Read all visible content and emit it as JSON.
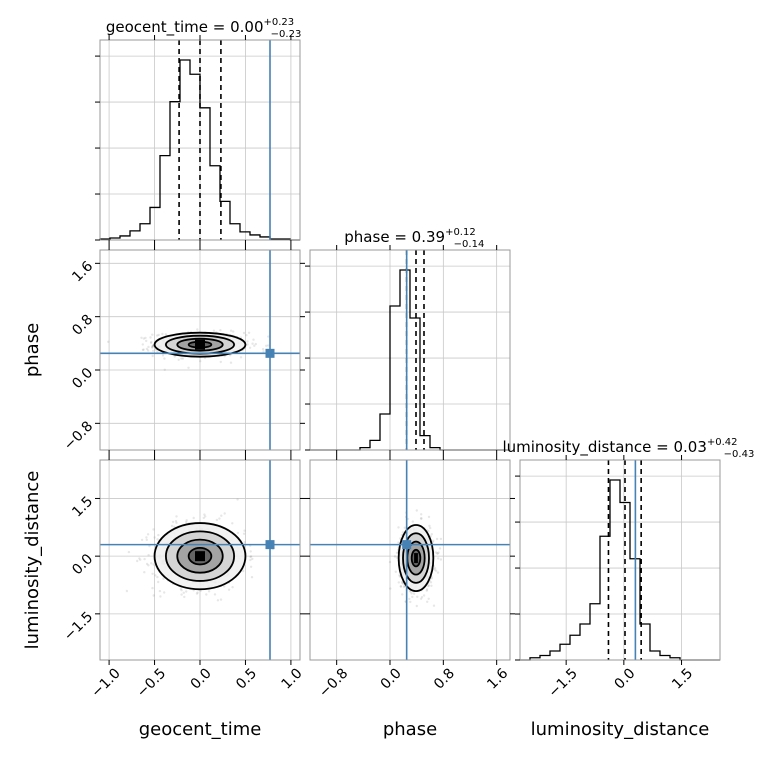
{
  "chart_data": {
    "type": "corner",
    "parameters": [
      {
        "name": "geocent_time",
        "xlabel": "geocent_time",
        "ylabel": "",
        "title_main": "geocent_time = 0.00",
        "title_sup": "+0.23",
        "title_sub": "−0.23",
        "median": 0.0,
        "err_minus": 0.23,
        "err_plus": 0.23,
        "truth": 0.77,
        "range": [
          -1.1,
          1.1
        ],
        "ticks": [
          -1.0,
          -0.5,
          0.0,
          0.5,
          1.0
        ],
        "tick_labels": [
          "−1.0",
          "−0.5",
          "0.0",
          "0.5",
          "1.0"
        ],
        "hist_edges_start": -1.1,
        "hist_bin_width": 0.11,
        "hist_counts": [
          1,
          2,
          4,
          9,
          16,
          32,
          83,
          136,
          177,
          163,
          130,
          73,
          38,
          16,
          8,
          5,
          3,
          1,
          1,
          0
        ]
      },
      {
        "name": "phase",
        "xlabel": "phase",
        "ylabel": "phase",
        "title_main": "phase = 0.39",
        "title_sup": "+0.12",
        "title_sub": "−0.14",
        "median": 0.39,
        "err_minus": 0.14,
        "err_plus": 0.12,
        "truth": 0.25,
        "range": [
          -1.2,
          1.8
        ],
        "ticks": [
          -0.8,
          0.0,
          0.8,
          1.6
        ],
        "tick_labels": [
          "−0.8",
          "0.0",
          "0.8",
          "1.6"
        ],
        "hist_edges_start": -1.2,
        "hist_bin_width": 0.15,
        "hist_counts": [
          0,
          0,
          0,
          0,
          0,
          1,
          4,
          15,
          60,
          75,
          55,
          6,
          1,
          0,
          0,
          0,
          0,
          0,
          0,
          0
        ]
      },
      {
        "name": "luminosity_distance",
        "xlabel": "luminosity_distance",
        "ylabel": "luminosity_distance",
        "title_main": "luminosity_distance = 0.03",
        "title_sup": "+0.42",
        "title_sub": "−0.43",
        "median": 0.03,
        "err_minus": 0.43,
        "err_plus": 0.42,
        "truth": 0.3,
        "range": [
          -2.7,
          2.5
        ],
        "ticks": [
          -1.5,
          0.0,
          1.5
        ],
        "tick_labels": [
          "−1.5",
          "0.0",
          "1.5"
        ],
        "hist_edges_start": -2.7,
        "hist_bin_width": 0.26,
        "hist_counts": [
          0,
          1,
          2,
          4,
          7,
          11,
          16,
          25,
          55,
          80,
          70,
          45,
          16,
          4,
          2,
          1,
          0,
          0,
          0,
          0
        ]
      }
    ],
    "pairs": [
      {
        "x": 0,
        "y": 1,
        "center": [
          0.0,
          0.38
        ],
        "sigma": [
          0.25,
          0.09
        ]
      },
      {
        "x": 0,
        "y": 2,
        "center": [
          0.0,
          0.0
        ],
        "sigma": [
          0.25,
          0.43
        ]
      },
      {
        "x": 1,
        "y": 2,
        "center": [
          0.39,
          -0.05
        ],
        "sigma": [
          0.13,
          0.43
        ]
      }
    ],
    "grid": true,
    "truth_color": "#4682b4"
  }
}
